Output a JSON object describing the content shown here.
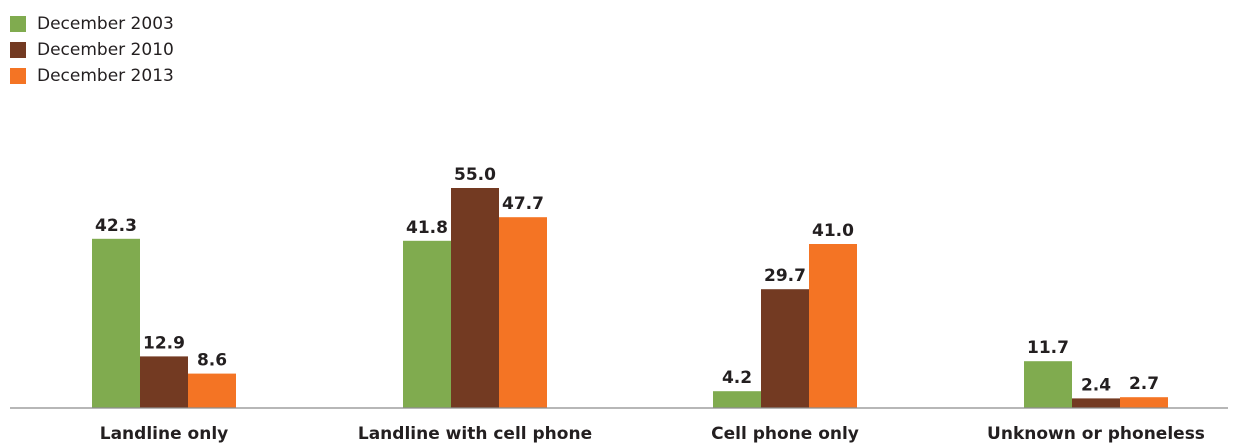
{
  "chart_data": {
    "type": "bar",
    "title": "",
    "xlabel": "",
    "ylabel": "",
    "ylim": [
      0,
      60
    ],
    "grid": false,
    "legend_position": "top-left",
    "categories": [
      "Landline only",
      "Landline with cell phone",
      "Cell phone only",
      "Unknown or phoneless"
    ],
    "series": [
      {
        "name": "December 2003",
        "color": "#80ab4f",
        "values": [
          42.3,
          41.8,
          4.2,
          11.7
        ],
        "labels": [
          "42.3",
          "41.8",
          "4.2",
          "11.7"
        ]
      },
      {
        "name": "December 2010",
        "color": "#733a22",
        "values": [
          12.9,
          55.0,
          29.7,
          2.4
        ],
        "labels": [
          "12.9",
          "55.0",
          "29.7",
          "2.4"
        ]
      },
      {
        "name": "December 2013",
        "color": "#f47424",
        "values": [
          8.6,
          47.7,
          41.0,
          2.7
        ],
        "labels": [
          "8.6",
          "47.7",
          "41.0",
          "2.7"
        ]
      }
    ]
  }
}
